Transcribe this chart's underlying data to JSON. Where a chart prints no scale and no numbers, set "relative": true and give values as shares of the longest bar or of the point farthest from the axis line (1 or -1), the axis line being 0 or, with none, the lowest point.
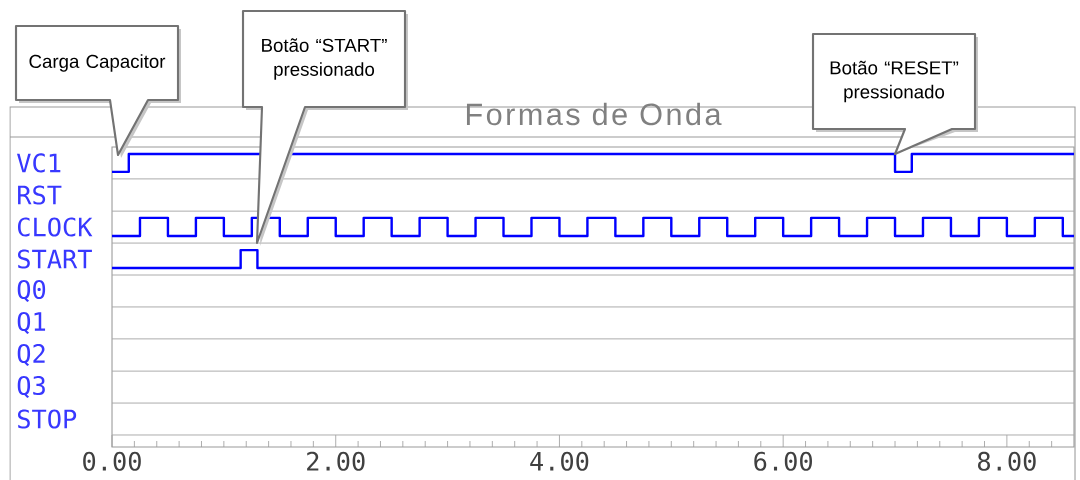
{
  "chart_data": {
    "type": "step",
    "title": "Formas de Onda",
    "relative": true,
    "xlim": [
      0,
      8.6
    ],
    "tick_labels": "x",
    "marker": "none",
    "line_style": "solid",
    "xticks": [
      {
        "value": 0,
        "label": "0.00"
      },
      {
        "value": 0.2,
        "label": null
      },
      {
        "value": 0.4,
        "label": null
      },
      {
        "value": 0.6,
        "label": null
      },
      {
        "value": 0.8,
        "label": null
      },
      {
        "value": 1,
        "label": null
      },
      {
        "value": 1.2,
        "label": null
      },
      {
        "value": 1.4,
        "label": null
      },
      {
        "value": 1.6,
        "label": null
      },
      {
        "value": 1.8,
        "label": null
      },
      {
        "value": 2,
        "label": "2.00"
      },
      {
        "value": 2.2,
        "label": null
      },
      {
        "value": 2.4,
        "label": null
      },
      {
        "value": 2.6,
        "label": null
      },
      {
        "value": 2.8,
        "label": null
      },
      {
        "value": 3,
        "label": null
      },
      {
        "value": 3.2,
        "label": null
      },
      {
        "value": 3.4,
        "label": null
      },
      {
        "value": 3.6,
        "label": null
      },
      {
        "value": 3.8,
        "label": null
      },
      {
        "value": 4,
        "label": "4.00"
      },
      {
        "value": 4.2,
        "label": null
      },
      {
        "value": 4.4,
        "label": null
      },
      {
        "value": 4.6,
        "label": null
      },
      {
        "value": 4.8,
        "label": null
      },
      {
        "value": 5,
        "label": null
      },
      {
        "value": 5.2,
        "label": null
      },
      {
        "value": 5.4,
        "label": null
      },
      {
        "value": 5.6,
        "label": null
      },
      {
        "value": 5.8,
        "label": null
      },
      {
        "value": 6,
        "label": "6.00"
      },
      {
        "value": 6.2,
        "label": null
      },
      {
        "value": 6.4,
        "label": null
      },
      {
        "value": 6.6,
        "label": null
      },
      {
        "value": 6.8,
        "label": null
      },
      {
        "value": 7,
        "label": null
      },
      {
        "value": 7.2,
        "label": null
      },
      {
        "value": 7.4,
        "label": null
      },
      {
        "value": 7.6,
        "label": null
      },
      {
        "value": 7.8,
        "label": null
      },
      {
        "value": 8,
        "label": "8.00"
      },
      {
        "value": 8.2,
        "label": null
      },
      {
        "value": 8.4,
        "label": null
      }
    ],
    "series": [
      {
        "name": "VC1",
        "color": "#0000ff",
        "x": [
          0,
          0.15,
          7.0,
          7.15,
          8.6
        ],
        "values": [
          0.939,
          1,
          0.939,
          1,
          1
        ]
      },
      {
        "name": "CLOCK",
        "color": "#0000ff",
        "x": [
          0,
          0.25,
          0.5,
          0.75,
          1,
          1.25,
          1.5,
          1.75,
          2,
          2.25,
          2.5,
          2.75,
          3,
          3.25,
          3.5,
          3.75,
          4,
          4.25,
          4.5,
          4.75,
          5,
          5.25,
          5.5,
          5.75,
          6,
          6.25,
          6.5,
          6.75,
          7,
          7.25,
          7.5,
          7.75,
          8,
          8.25,
          8.5,
          8.6
        ],
        "values": [
          0.72,
          0.782,
          0.72,
          0.782,
          0.72,
          0.782,
          0.72,
          0.782,
          0.72,
          0.782,
          0.72,
          0.782,
          0.72,
          0.782,
          0.72,
          0.782,
          0.72,
          0.782,
          0.72,
          0.782,
          0.72,
          0.782,
          0.72,
          0.782,
          0.72,
          0.782,
          0.72,
          0.782,
          0.72,
          0.782,
          0.72,
          0.782,
          0.72,
          0.782,
          0.72,
          0.72
        ]
      },
      {
        "name": "START",
        "color": "#0000ff",
        "x": [
          0,
          1.15,
          1.3,
          8.6
        ],
        "values": [
          0.611,
          0.672,
          0.611,
          0.611
        ]
      }
    ],
    "ref_lines": [
      {
        "axis": "y",
        "value": 0.915,
        "color": "#a6a6a6"
      },
      {
        "axis": "y",
        "value": 0.805,
        "color": "#a6a6a6"
      },
      {
        "axis": "y",
        "value": 0.696,
        "color": "#a6a6a6"
      },
      {
        "axis": "y",
        "value": 0.587,
        "color": "#a6a6a6"
      },
      {
        "axis": "y",
        "value": 0.478,
        "color": "#a6a6a6"
      },
      {
        "axis": "y",
        "value": 0.369,
        "color": "#a6a6a6"
      },
      {
        "axis": "y",
        "value": 0.259,
        "color": "#a6a6a6"
      },
      {
        "axis": "y",
        "value": 0.15,
        "color": "#a6a6a6"
      },
      {
        "axis": "y",
        "value": 0.041,
        "color": "#a6a6a6"
      }
    ],
    "annotations": [
      "Carga Capacitor",
      "Botão “START” pressionado",
      {
        "text": "Botão “RESET” pressionado",
        "x": 7.0,
        "y": 1
      },
      "RST",
      "Q0",
      "Q1",
      "Q2",
      "Q3",
      "STOP"
    ]
  }
}
